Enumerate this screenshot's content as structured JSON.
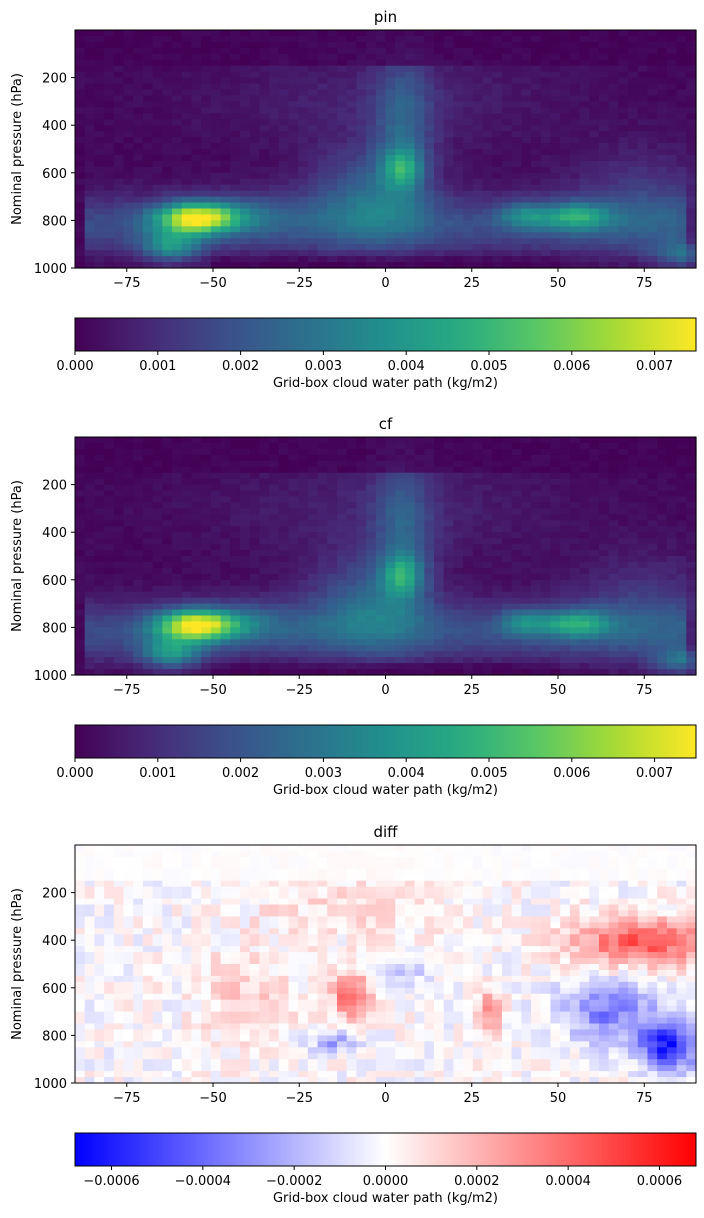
{
  "chart_data": [
    {
      "type": "heatmap",
      "title": "pin",
      "xlabel": "",
      "ylabel": "Nominal pressure (hPa)",
      "xlim": [
        -90,
        90
      ],
      "ylim": [
        1000,
        0
      ],
      "xticks": [
        -75,
        -50,
        -25,
        0,
        25,
        50,
        75
      ],
      "yticks": [
        200,
        400,
        600,
        800,
        1000
      ],
      "colormap": "viridis",
      "colorbar": {
        "label": "Grid-box cloud water path (kg/m2)",
        "range": [
          0,
          0.0075
        ],
        "ticks": [
          "0.000",
          "0.001",
          "0.002",
          "0.003",
          "0.004",
          "0.005",
          "0.006",
          "0.007"
        ]
      },
      "features": [
        {
          "lat": -55,
          "pressure": 790,
          "value": 0.0074
        },
        {
          "lat": -62,
          "pressure": 900,
          "value": 0.0045
        },
        {
          "lat": 5,
          "pressure": 580,
          "value": 0.005
        },
        {
          "lat": 5,
          "pressure": 760,
          "value": 0.004
        },
        {
          "lat": 55,
          "pressure": 780,
          "value": 0.0048
        },
        {
          "lat": 40,
          "pressure": 780,
          "value": 0.0035
        },
        {
          "lat": 85,
          "pressure": 950,
          "value": 0.004
        }
      ]
    },
    {
      "type": "heatmap",
      "title": "cf",
      "xlabel": "",
      "ylabel": "Nominal pressure (hPa)",
      "xlim": [
        -90,
        90
      ],
      "ylim": [
        1000,
        0
      ],
      "xticks": [
        -75,
        -50,
        -25,
        0,
        25,
        50,
        75
      ],
      "yticks": [
        200,
        400,
        600,
        800,
        1000
      ],
      "colormap": "viridis",
      "colorbar": {
        "label": "Grid-box cloud water path (kg/m2)",
        "range": [
          0,
          0.0075
        ],
        "ticks": [
          "0.000",
          "0.001",
          "0.002",
          "0.003",
          "0.004",
          "0.005",
          "0.006",
          "0.007"
        ]
      },
      "features": [
        {
          "lat": -55,
          "pressure": 790,
          "value": 0.0075
        },
        {
          "lat": -62,
          "pressure": 900,
          "value": 0.0045
        },
        {
          "lat": 5,
          "pressure": 575,
          "value": 0.0052
        },
        {
          "lat": 5,
          "pressure": 760,
          "value": 0.004
        },
        {
          "lat": 55,
          "pressure": 780,
          "value": 0.0048
        },
        {
          "lat": 40,
          "pressure": 770,
          "value": 0.0035
        },
        {
          "lat": 85,
          "pressure": 950,
          "value": 0.0042
        }
      ]
    },
    {
      "type": "heatmap",
      "title": "diff",
      "xlabel": "",
      "ylabel": "Nominal pressure (hPa)",
      "xlim": [
        -90,
        90
      ],
      "ylim": [
        1000,
        0
      ],
      "xticks": [
        -75,
        -50,
        -25,
        0,
        25,
        50,
        75
      ],
      "yticks": [
        200,
        400,
        600,
        800,
        1000
      ],
      "colormap": "bwr",
      "colorbar": {
        "label": "Grid-box cloud water path (kg/m2)",
        "range": [
          -0.00068,
          0.00068
        ],
        "ticks": [
          "−0.0006",
          "−0.0004",
          "−0.0002",
          "0.0000",
          "0.0002",
          "0.0004",
          "0.0006"
        ],
        "tick_values": [
          -0.0006,
          -0.0004,
          -0.0002,
          0.0,
          0.0002,
          0.0004,
          0.0006
        ]
      },
      "features": [
        {
          "lat": 75,
          "pressure": 400,
          "value": 0.00045
        },
        {
          "lat": -10,
          "pressure": 620,
          "value": 0.0004
        },
        {
          "lat": 30,
          "pressure": 700,
          "value": 0.0003
        },
        {
          "lat": 82,
          "pressure": 850,
          "value": -0.00065
        },
        {
          "lat": 65,
          "pressure": 720,
          "value": -0.00035
        },
        {
          "lat": -15,
          "pressure": 830,
          "value": -0.00025
        },
        {
          "lat": 5,
          "pressure": 550,
          "value": -0.00015
        }
      ]
    }
  ]
}
